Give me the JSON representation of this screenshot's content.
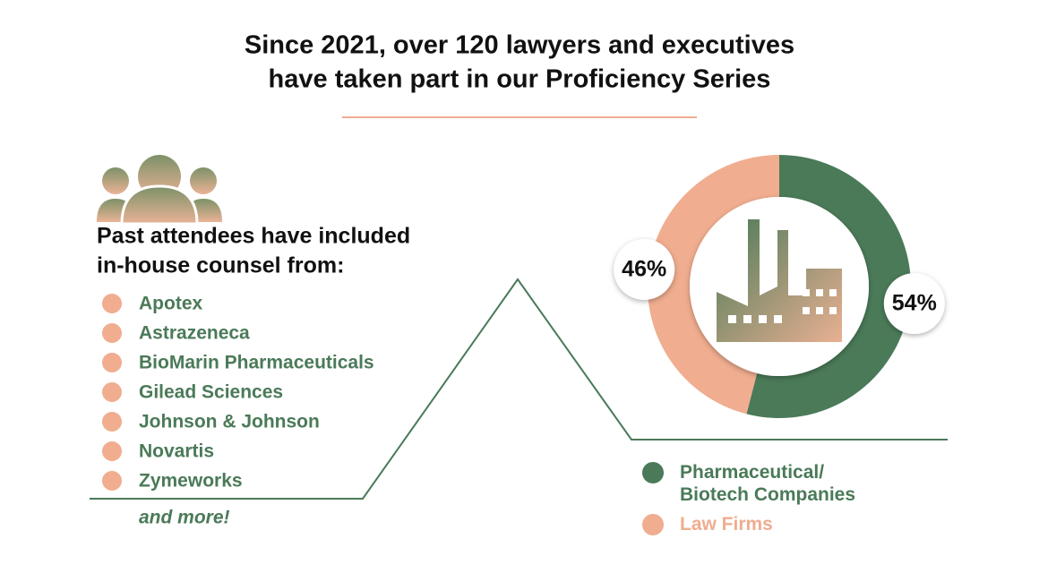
{
  "title": [
    "Since 2021, over 120 lawyers and executives",
    "have taken part in our Proficiency Series"
  ],
  "attendees": {
    "heading": [
      "Past attendees have included",
      "in-house counsel from:"
    ],
    "items": [
      "Apotex",
      "Astrazeneca",
      "BioMarin Pharmaceuticals",
      "Gilead Sciences",
      "Johnson & Johnson",
      "Novartis",
      "Zymeworks"
    ],
    "more": "and more!"
  },
  "chart_data": {
    "type": "donut",
    "categories": [
      "Pharmaceutical/ Biotech Companies",
      "Law Firms"
    ],
    "values": [
      54,
      46
    ],
    "value_labels": [
      "54%",
      "46%"
    ],
    "colors": [
      "#4a7a58",
      "#f0ad8f"
    ]
  }
}
